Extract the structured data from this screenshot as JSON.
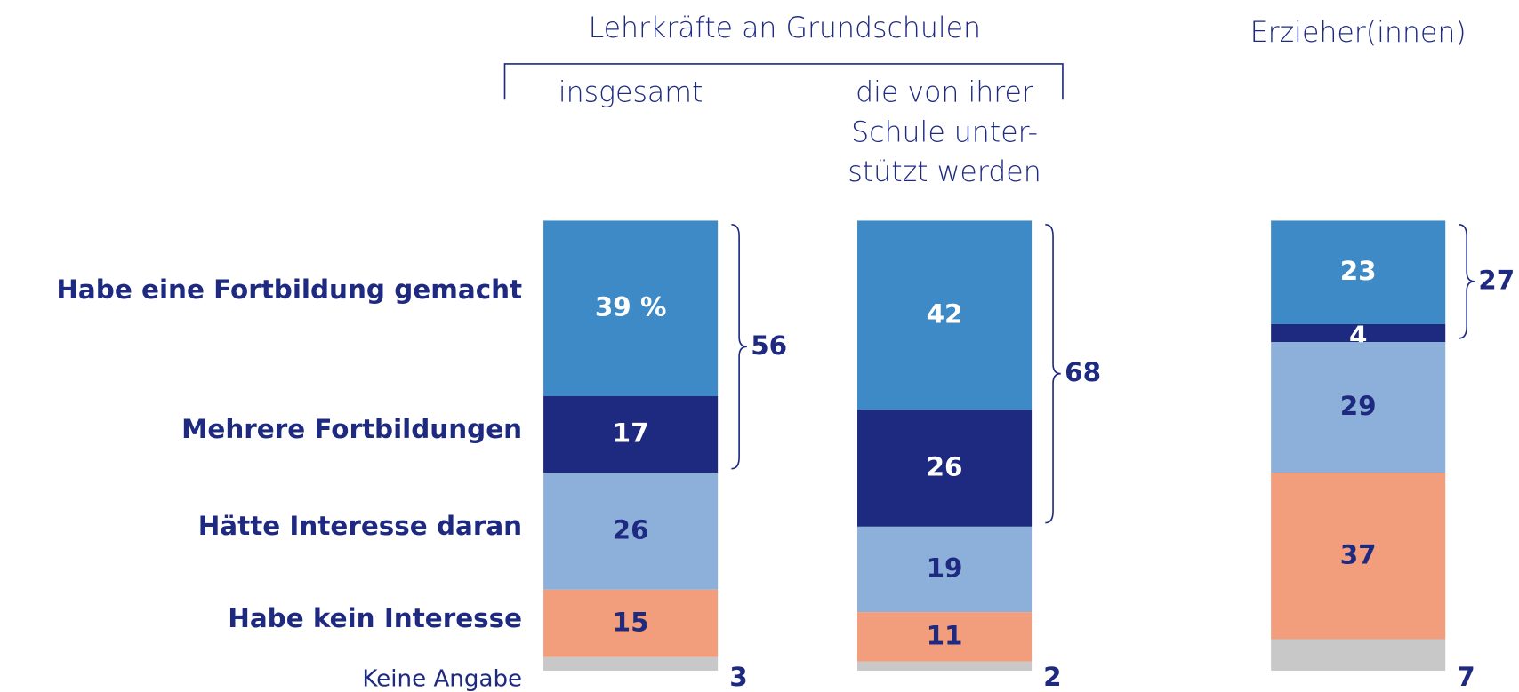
{
  "chart_data": {
    "type": "stacked_bar",
    "group_label": "Lehrkräfte an Grundschulen",
    "categories": [
      "insgesamt",
      [
        "die von ihrer",
        "Schule unter-",
        "stützt werden"
      ],
      "Erzieher(innen)"
    ],
    "series": [
      {
        "name": "Habe eine Fortbildung gemacht",
        "color": "#3d8ac6",
        "values": [
          39,
          42,
          23
        ],
        "value_labels": [
          "39 %",
          "42",
          "23"
        ]
      },
      {
        "name": "Mehrere Fortbildungen",
        "color": "#1e2a80",
        "values": [
          17,
          26,
          4
        ]
      },
      {
        "name": "Hätte Interesse daran",
        "color": "#8db0da",
        "values": [
          26,
          19,
          29
        ]
      },
      {
        "name": "Habe kein Interesse",
        "color": "#f29d7c",
        "values": [
          15,
          11,
          37
        ]
      },
      {
        "name": "Keine Angabe",
        "color": "#c8c8c8",
        "values": [
          3,
          2,
          7
        ],
        "label_position": "outside"
      }
    ],
    "brace_totals": [
      56,
      68,
      27
    ],
    "ylim": [
      0,
      100
    ]
  }
}
